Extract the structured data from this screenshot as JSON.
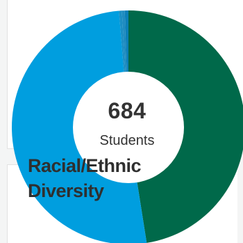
{
  "chart_data": {
    "type": "pie",
    "variant": "donut",
    "title": "Racial/Ethnic Diversity",
    "center_value": "684",
    "center_label": "Students",
    "slices": [
      {
        "value": 0.475,
        "color": "#00694a"
      },
      {
        "value": 0.512,
        "color": "#009edf"
      },
      {
        "value": 0.004,
        "color": "#1b8fc4"
      },
      {
        "value": 0.004,
        "color": "#1f8cc0"
      },
      {
        "value": 0.005,
        "color": "#0c7fb8"
      }
    ]
  }
}
